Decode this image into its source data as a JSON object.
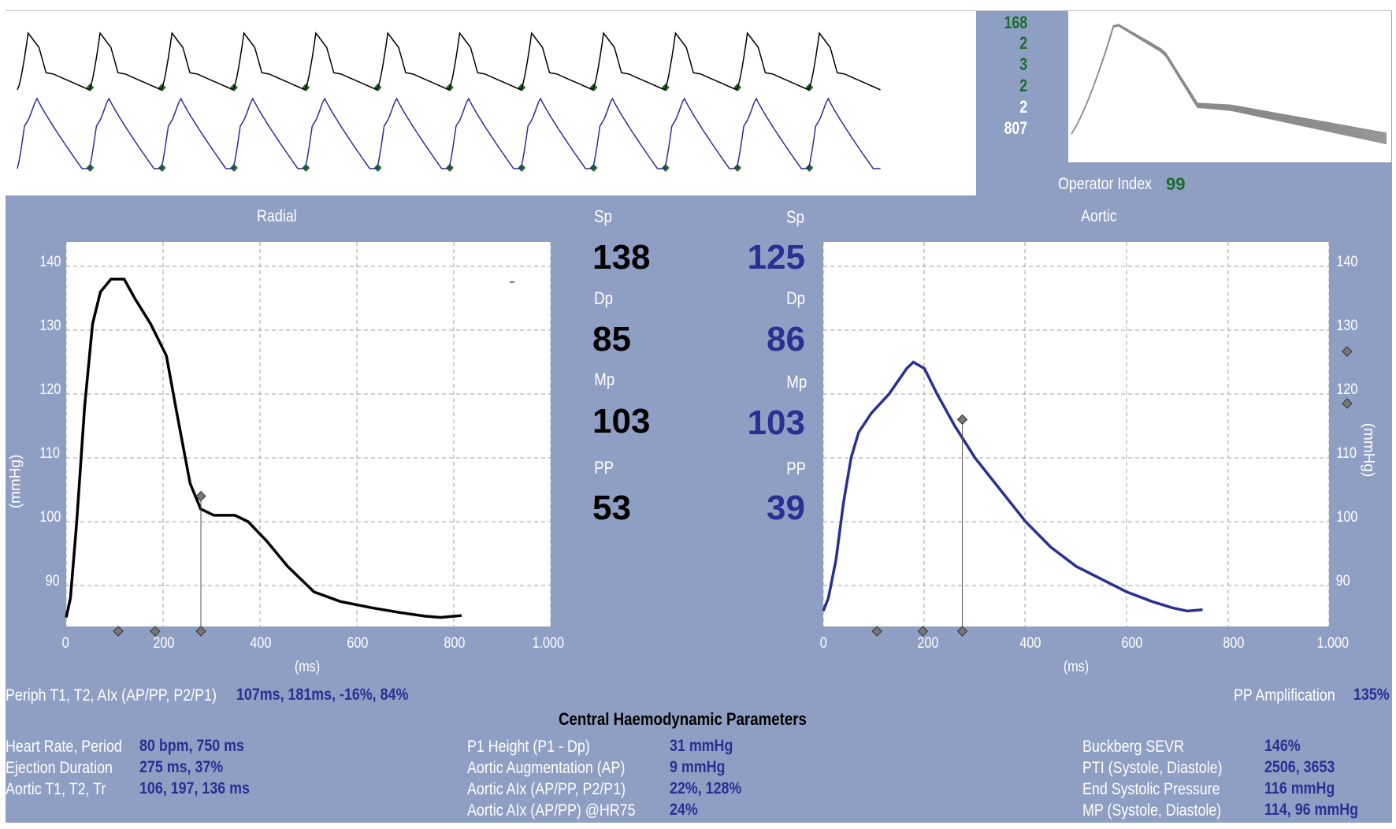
{
  "quality_numbers": [
    "168",
    "2",
    "3",
    "2",
    "2",
    "807"
  ],
  "operator_index": {
    "label": "Operator Index",
    "value": "99"
  },
  "radial": {
    "title": "Radial",
    "y_label": "(mmHg)",
    "x_label": "(ms)",
    "y_ticks": [
      "140",
      "130",
      "120",
      "110",
      "100",
      "90"
    ],
    "x_ticks": [
      "0",
      "200",
      "400",
      "600",
      "800",
      "1.000"
    ]
  },
  "aortic": {
    "title": "Aortic",
    "y_label": "(mmHg)",
    "x_label": "(ms)",
    "y_ticks": [
      "140",
      "130",
      "120",
      "110",
      "100",
      "90"
    ],
    "x_ticks": [
      "0",
      "200",
      "400",
      "600",
      "800",
      "1.000"
    ]
  },
  "pressures": {
    "sp_label": "Sp",
    "dp_label": "Dp",
    "mp_label": "Mp",
    "pp_label": "PP",
    "radial_sp": "138",
    "radial_dp": "85",
    "radial_mp": "103",
    "radial_pp": "53",
    "aortic_sp": "125",
    "aortic_dp": "86",
    "aortic_mp": "103",
    "aortic_pp": "39"
  },
  "periph": {
    "label": "Periph T1, T2, AIx (AP/PP, P2/P1)",
    "value": "107ms, 181ms, -16%, 84%"
  },
  "pp_amplification": {
    "label": "PP Amplification",
    "value": "135%"
  },
  "central_title": "Central Haemodynamic Parameters",
  "params_left": [
    {
      "label": "Heart Rate, Period",
      "value": "80 bpm, 750 ms"
    },
    {
      "label": "Ejection Duration",
      "value": "275 ms, 37%"
    },
    {
      "label": "Aortic T1, T2, Tr",
      "value": "106, 197, 136 ms"
    }
  ],
  "params_mid": [
    {
      "label": "P1 Height (P1 - Dp)",
      "value": "31 mmHg"
    },
    {
      "label": "Aortic Augmentation (AP)",
      "value": "9 mmHg"
    },
    {
      "label": "Aortic AIx (AP/PP, P2/P1)",
      "value": "22%, 128%"
    },
    {
      "label": "Aortic AIx (AP/PP) @HR75",
      "value": "24%"
    }
  ],
  "params_right": [
    {
      "label": "Buckberg SEVR",
      "value": "146%"
    },
    {
      "label": "PTI (Systole, Diastole)",
      "value": "2506, 3653"
    },
    {
      "label": "End Systolic Pressure",
      "value": "116 mmHg"
    },
    {
      "label": "MP (Systole, Diastole)",
      "value": "114, 96 mmHg"
    }
  ],
  "colors": {
    "panel": "#8f9fc4",
    "radial_trace": "#000000",
    "aortic_trace": "#2b2f93",
    "green": "#1e6b2a"
  }
}
